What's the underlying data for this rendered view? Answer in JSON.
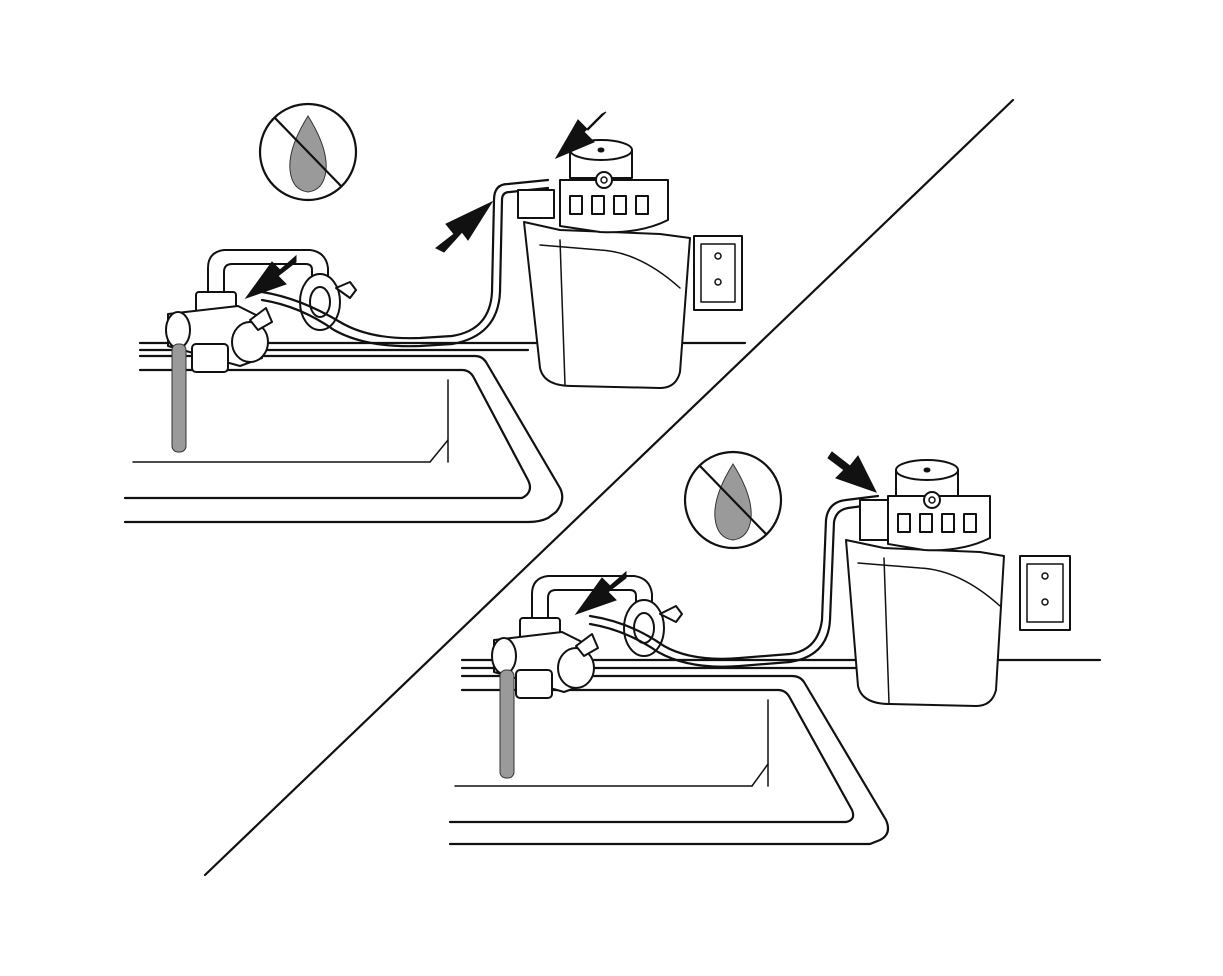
{
  "figure": {
    "panels": [
      {
        "id": "top-left",
        "symbol": "no-water-icon",
        "arrows": [
          "arrow-outlet-connection",
          "arrow-inlet-connection",
          "arrow-diverter-valve"
        ],
        "water_flow": true
      },
      {
        "id": "bottom-right",
        "symbol": "no-water-icon",
        "arrows": [
          "arrow-hose-connection",
          "arrow-diverter-valve"
        ],
        "water_flow": true
      }
    ],
    "colors": {
      "ink": "#111111",
      "drop_fill": "#9a9a9a",
      "water": "#7a7a7a",
      "background": "#ffffff"
    }
  }
}
